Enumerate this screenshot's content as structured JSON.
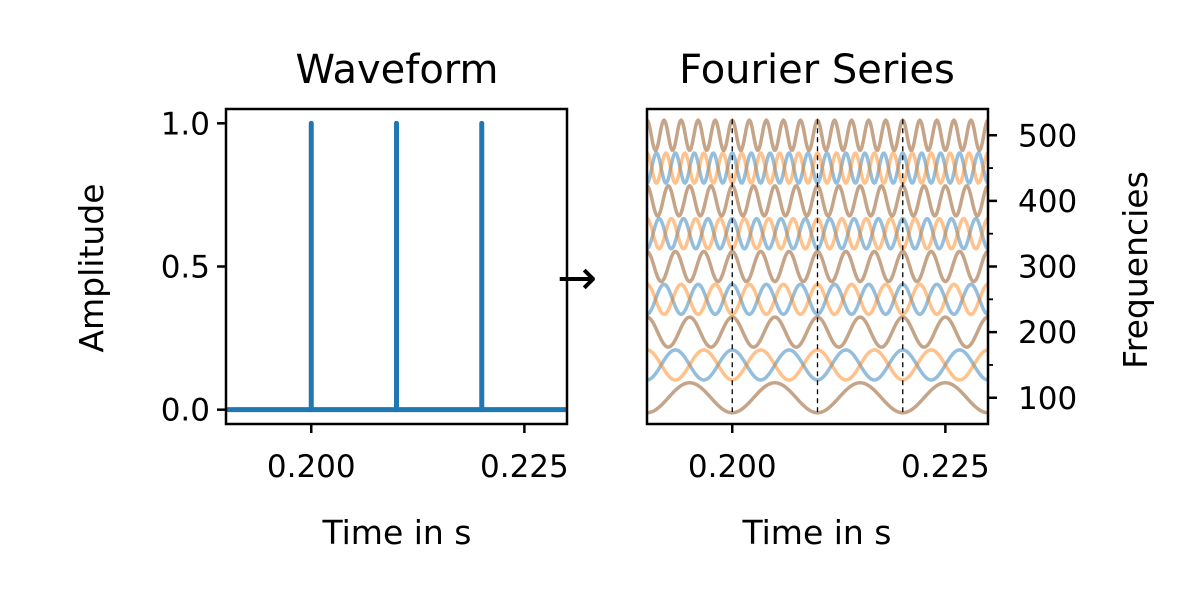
{
  "panels": {
    "waveform": {
      "title": "Waveform",
      "xlabel": "Time in s",
      "ylabel": "Amplitude"
    },
    "fourier": {
      "title": "Fourier Series",
      "xlabel": "Time in s",
      "ylabel": "Frequencies"
    }
  },
  "arrow_glyph": "→",
  "chart_data": [
    {
      "type": "line",
      "title": "Waveform",
      "xlabel": "Time in s",
      "ylabel": "Amplitude",
      "xlim": [
        0.19,
        0.23
      ],
      "ylim": [
        -0.05,
        1.05
      ],
      "xticks": [
        0.2,
        0.225
      ],
      "xtick_labels": [
        "0.200",
        "0.225"
      ],
      "yticks": [
        0.0,
        0.5,
        1.0
      ],
      "ytick_labels": [
        "0.0",
        "0.5",
        "1.0"
      ],
      "baseline": 0.0,
      "impulse_times": [
        0.2,
        0.21,
        0.22
      ],
      "impulse_amplitude": 1.0,
      "color": "#1f77b4",
      "grid": false
    },
    {
      "type": "line",
      "title": "Fourier Series",
      "xlabel": "Time in s",
      "ylabel": "Frequencies",
      "xlim": [
        0.19,
        0.23
      ],
      "ylim": [
        60,
        540
      ],
      "xticks": [
        0.2,
        0.225
      ],
      "xtick_labels": [
        "0.200",
        "0.225"
      ],
      "yticks": [
        100,
        200,
        300,
        400,
        500
      ],
      "ytick_labels": [
        "100",
        "200",
        "300",
        "400",
        "500"
      ],
      "y_axis_side": "right",
      "frequencies": [
        100,
        150,
        200,
        250,
        300,
        350,
        400,
        450,
        500
      ],
      "vertical_markers": [
        0.2,
        0.21,
        0.22
      ],
      "colors": {
        "blue": "#1f77b4",
        "orange": "#ff7f0e",
        "brown": "#8c4a10"
      },
      "grid": false
    }
  ]
}
